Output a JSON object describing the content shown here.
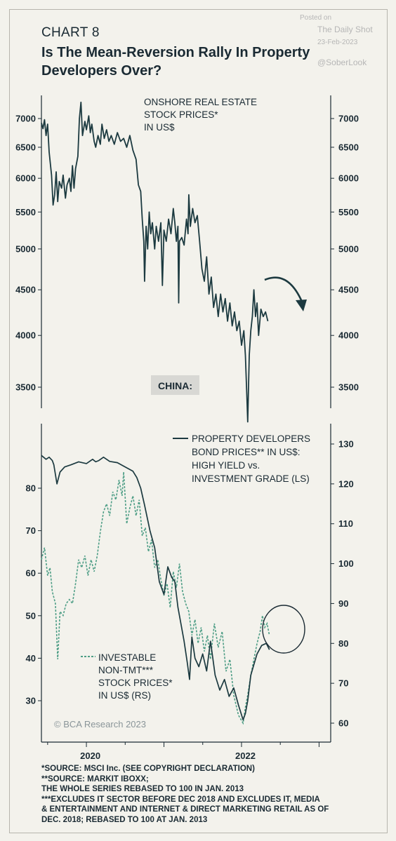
{
  "header": {
    "chart_number": "CHART 8",
    "title": "Is The Mean-Reversion Rally In Property Developers Over?"
  },
  "watermark": {
    "posted_on": "Posted on",
    "source": "The Daily Shot",
    "date": "23-Feb-2023",
    "handle": "@SoberLook"
  },
  "colors": {
    "background": "#f3f2ec",
    "dark_line": "#1c3a40",
    "green_dash": "#4e9e86",
    "china_box": "#d8d8d4"
  },
  "chart_data": [
    {
      "type": "line",
      "panel": "top",
      "annotation": [
        "ONSHORE REAL ESTATE",
        "STOCK PRICES*",
        "IN US$"
      ],
      "box_label": "CHINA:",
      "y_scale": "log",
      "ylim": [
        3200,
        7400
      ],
      "y_ticks": [
        3500,
        4000,
        4500,
        5000,
        5500,
        6000,
        6500,
        7000
      ],
      "xlim": [
        2019.42,
        2023.15
      ],
      "series": [
        {
          "values": [
            [
              2019.42,
              6920
            ],
            [
              2019.44,
              6820
            ],
            [
              2019.46,
              6980
            ],
            [
              2019.48,
              6700
            ],
            [
              2019.5,
              6900
            ],
            [
              2019.52,
              6420
            ],
            [
              2019.55,
              6050
            ],
            [
              2019.57,
              5600
            ],
            [
              2019.59,
              5750
            ],
            [
              2019.61,
              6100
            ],
            [
              2019.63,
              5650
            ],
            [
              2019.65,
              5950
            ],
            [
              2019.68,
              5850
            ],
            [
              2019.7,
              6050
            ],
            [
              2019.73,
              5700
            ],
            [
              2019.75,
              5900
            ],
            [
              2019.78,
              6000
            ],
            [
              2019.8,
              5800
            ],
            [
              2019.82,
              6200
            ],
            [
              2019.84,
              5850
            ],
            [
              2019.86,
              6150
            ],
            [
              2019.89,
              6350
            ],
            [
              2019.91,
              7000
            ],
            [
              2019.93,
              7300
            ],
            [
              2019.95,
              6700
            ],
            [
              2019.98,
              6950
            ],
            [
              2020.0,
              6800
            ],
            [
              2020.03,
              7050
            ],
            [
              2020.05,
              6750
            ],
            [
              2020.07,
              6900
            ],
            [
              2020.1,
              6600
            ],
            [
              2020.12,
              6500
            ],
            [
              2020.15,
              6700
            ],
            [
              2020.18,
              6550
            ],
            [
              2020.2,
              6900
            ],
            [
              2020.23,
              6650
            ],
            [
              2020.26,
              6800
            ],
            [
              2020.29,
              6600
            ],
            [
              2020.32,
              6700
            ],
            [
              2020.36,
              6550
            ],
            [
              2020.4,
              6750
            ],
            [
              2020.44,
              6600
            ],
            [
              2020.48,
              6650
            ],
            [
              2020.52,
              6500
            ],
            [
              2020.56,
              6700
            ],
            [
              2020.6,
              6450
            ],
            [
              2020.64,
              6300
            ],
            [
              2020.67,
              5900
            ],
            [
              2020.7,
              5800
            ],
            [
              2020.72,
              5400
            ],
            [
              2020.74,
              5100
            ],
            [
              2020.75,
              4600
            ],
            [
              2020.77,
              5300
            ],
            [
              2020.79,
              5000
            ],
            [
              2020.81,
              5500
            ],
            [
              2020.83,
              5200
            ],
            [
              2020.85,
              5350
            ],
            [
              2020.88,
              5000
            ],
            [
              2020.9,
              5300
            ],
            [
              2020.93,
              5100
            ],
            [
              2020.96,
              5350
            ],
            [
              2020.98,
              4550
            ],
            [
              2021.0,
              5250
            ],
            [
              2021.03,
              5100
            ],
            [
              2021.06,
              5400
            ],
            [
              2021.09,
              5200
            ],
            [
              2021.12,
              5550
            ],
            [
              2021.14,
              5350
            ],
            [
              2021.16,
              5100
            ],
            [
              2021.18,
              5300
            ],
            [
              2021.19,
              4350
            ],
            [
              2021.2,
              5100
            ],
            [
              2021.23,
              5150
            ],
            [
              2021.26,
              5050
            ],
            [
              2021.29,
              5400
            ],
            [
              2021.31,
              5200
            ],
            [
              2021.32,
              5750
            ],
            [
              2021.34,
              5300
            ],
            [
              2021.37,
              5550
            ],
            [
              2021.4,
              5350
            ],
            [
              2021.43,
              5450
            ],
            [
              2021.46,
              5100
            ],
            [
              2021.49,
              4750
            ],
            [
              2021.52,
              4600
            ],
            [
              2021.55,
              4900
            ],
            [
              2021.58,
              4450
            ],
            [
              2021.61,
              4650
            ],
            [
              2021.64,
              4300
            ],
            [
              2021.67,
              4450
            ],
            [
              2021.7,
              4200
            ],
            [
              2021.73,
              4450
            ],
            [
              2021.76,
              4250
            ],
            [
              2021.79,
              4400
            ],
            [
              2021.82,
              4150
            ],
            [
              2021.85,
              4350
            ],
            [
              2021.88,
              4100
            ],
            [
              2021.91,
              4250
            ],
            [
              2021.94,
              4050
            ],
            [
              2021.97,
              4150
            ],
            [
              2022.0,
              3900
            ],
            [
              2022.03,
              4050
            ],
            [
              2022.05,
              3800
            ],
            [
              2022.07,
              3400
            ],
            [
              2022.08,
              3200
            ],
            [
              2022.1,
              3800
            ],
            [
              2022.12,
              4050
            ],
            [
              2022.14,
              4200
            ],
            [
              2022.16,
              4500
            ],
            [
              2022.18,
              4200
            ],
            [
              2022.2,
              4350
            ],
            [
              2022.22,
              4000
            ],
            [
              2022.25,
              4280
            ],
            [
              2022.28,
              4200
            ],
            [
              2022.31,
              4250
            ],
            [
              2022.34,
              4150
            ]
          ]
        }
      ]
    },
    {
      "type": "line",
      "panel": "bottom",
      "annotation_ls": [
        "PROPERTY DEVELOPERS",
        "BOND PRICES** IN US$:",
        "HIGH YIELD vs.",
        "INVESTMENT GRADE (LS)"
      ],
      "annotation_rs": [
        "INVESTABLE",
        "NON-TMT***",
        "STOCK PRICES*",
        "IN US$ (RS)"
      ],
      "copyright": "© BCA Research 2023",
      "x_ticks": [
        "2020",
        "2022"
      ],
      "x_tick_values": [
        2020,
        2022
      ],
      "xlim": [
        2019.42,
        2023.15
      ],
      "ylim_left": [
        25,
        90
      ],
      "y_ticks_left": [
        30,
        40,
        50,
        60,
        70,
        80
      ],
      "ylim_right": [
        56,
        132
      ],
      "y_ticks_right": [
        60,
        70,
        80,
        90,
        100,
        110,
        120,
        130
      ],
      "series": [
        {
          "axis": "left",
          "style": "solid",
          "values": [
            [
              2019.42,
              87.7
            ],
            [
              2019.48,
              86.8
            ],
            [
              2019.52,
              87.3
            ],
            [
              2019.56,
              86.5
            ],
            [
              2019.58,
              85.5
            ],
            [
              2019.62,
              81.0
            ],
            [
              2019.66,
              83.8
            ],
            [
              2019.72,
              85.0
            ],
            [
              2019.8,
              85.5
            ],
            [
              2019.9,
              86.2
            ],
            [
              2020.0,
              85.8
            ],
            [
              2020.08,
              86.8
            ],
            [
              2020.12,
              86.2
            ],
            [
              2020.16,
              86.5
            ],
            [
              2020.22,
              87.3
            ],
            [
              2020.3,
              86.3
            ],
            [
              2020.4,
              86.0
            ],
            [
              2020.5,
              85.0
            ],
            [
              2020.6,
              84.0
            ],
            [
              2020.65,
              82.5
            ],
            [
              2020.7,
              80.0
            ],
            [
              2020.75,
              76.0
            ],
            [
              2020.82,
              70.0
            ],
            [
              2020.88,
              66.0
            ],
            [
              2020.94,
              58.0
            ],
            [
              2021.0,
              55.0
            ],
            [
              2021.05,
              61.5
            ],
            [
              2021.1,
              59.0
            ],
            [
              2021.14,
              58.0
            ],
            [
              2021.18,
              52.0
            ],
            [
              2021.22,
              48.0
            ],
            [
              2021.26,
              44.0
            ],
            [
              2021.3,
              39.0
            ],
            [
              2021.33,
              35.0
            ],
            [
              2021.36,
              45.0
            ],
            [
              2021.4,
              40.0
            ],
            [
              2021.45,
              38.0
            ],
            [
              2021.5,
              41.0
            ],
            [
              2021.55,
              37.0
            ],
            [
              2021.6,
              44.0
            ],
            [
              2021.66,
              36.0
            ],
            [
              2021.72,
              32.5
            ],
            [
              2021.78,
              35.0
            ],
            [
              2021.84,
              31.0
            ],
            [
              2021.9,
              33.0
            ],
            [
              2021.96,
              29.0
            ],
            [
              2022.02,
              25.5
            ],
            [
              2022.05,
              27.0
            ],
            [
              2022.08,
              30.0
            ],
            [
              2022.12,
              36.0
            ],
            [
              2022.16,
              38.5
            ],
            [
              2022.2,
              41.0
            ],
            [
              2022.26,
              43.0
            ],
            [
              2022.32,
              43.5
            ],
            [
              2022.36,
              42.0
            ]
          ]
        },
        {
          "axis": "right",
          "style": "dashed",
          "values": [
            [
              2019.42,
              101
            ],
            [
              2019.46,
              104
            ],
            [
              2019.5,
              97
            ],
            [
              2019.53,
              99
            ],
            [
              2019.56,
              93
            ],
            [
              2019.6,
              90
            ],
            [
              2019.63,
              76
            ],
            [
              2019.66,
              88
            ],
            [
              2019.7,
              87
            ],
            [
              2019.74,
              90
            ],
            [
              2019.78,
              91
            ],
            [
              2019.82,
              90
            ],
            [
              2019.86,
              95
            ],
            [
              2019.9,
              101
            ],
            [
              2019.94,
              99
            ],
            [
              2019.98,
              102
            ],
            [
              2020.02,
              97
            ],
            [
              2020.06,
              101
            ],
            [
              2020.1,
              98
            ],
            [
              2020.14,
              102
            ],
            [
              2020.18,
              108
            ],
            [
              2020.22,
              113
            ],
            [
              2020.26,
              115
            ],
            [
              2020.3,
              112
            ],
            [
              2020.34,
              118
            ],
            [
              2020.38,
              116
            ],
            [
              2020.42,
              121
            ],
            [
              2020.46,
              117
            ],
            [
              2020.48,
              123
            ],
            [
              2020.52,
              110
            ],
            [
              2020.56,
              114
            ],
            [
              2020.6,
              117
            ],
            [
              2020.64,
              112
            ],
            [
              2020.68,
              116
            ],
            [
              2020.72,
              107
            ],
            [
              2020.76,
              109
            ],
            [
              2020.8,
              103
            ],
            [
              2020.84,
              106
            ],
            [
              2020.88,
              99
            ],
            [
              2020.92,
              101
            ],
            [
              2020.96,
              96
            ],
            [
              2021.0,
              92
            ],
            [
              2021.04,
              95
            ],
            [
              2021.08,
              89
            ],
            [
              2021.12,
              98
            ],
            [
              2021.16,
              94
            ],
            [
              2021.2,
              100
            ],
            [
              2021.24,
              93
            ],
            [
              2021.28,
              90
            ],
            [
              2021.32,
              88
            ],
            [
              2021.36,
              82
            ],
            [
              2021.4,
              86
            ],
            [
              2021.44,
              80
            ],
            [
              2021.48,
              84
            ],
            [
              2021.52,
              78
            ],
            [
              2021.56,
              82
            ],
            [
              2021.6,
              76
            ],
            [
              2021.65,
              85
            ],
            [
              2021.7,
              79
            ],
            [
              2021.75,
              83
            ],
            [
              2021.8,
              73
            ],
            [
              2021.85,
              76
            ],
            [
              2021.9,
              67
            ],
            [
              2021.96,
              62
            ],
            [
              2022.02,
              60
            ],
            [
              2022.05,
              64
            ],
            [
              2022.08,
              67
            ],
            [
              2022.12,
              72
            ],
            [
              2022.16,
              76
            ],
            [
              2022.2,
              80
            ],
            [
              2022.24,
              83
            ],
            [
              2022.27,
              87
            ],
            [
              2022.3,
              84
            ],
            [
              2022.33,
              85
            ],
            [
              2022.36,
              82
            ]
          ]
        }
      ]
    }
  ],
  "footnotes": [
    "*SOURCE: MSCI Inc. (SEE COPYRIGHT DECLARATION)",
    "**SOURCE: MARKIT IBOXX;",
    "THE WHOLE SERIES REBASED TO 100 IN JAN. 2013",
    "***EXCLUDES IT SECTOR BEFORE DEC 2018 AND EXCLUDES IT, MEDIA",
    "& ENTERTAINMENT AND INTERNET & DIRECT MARKETING RETAIL AS OF",
    "DEC. 2018; REBASED TO 100 AT JAN. 2013"
  ]
}
